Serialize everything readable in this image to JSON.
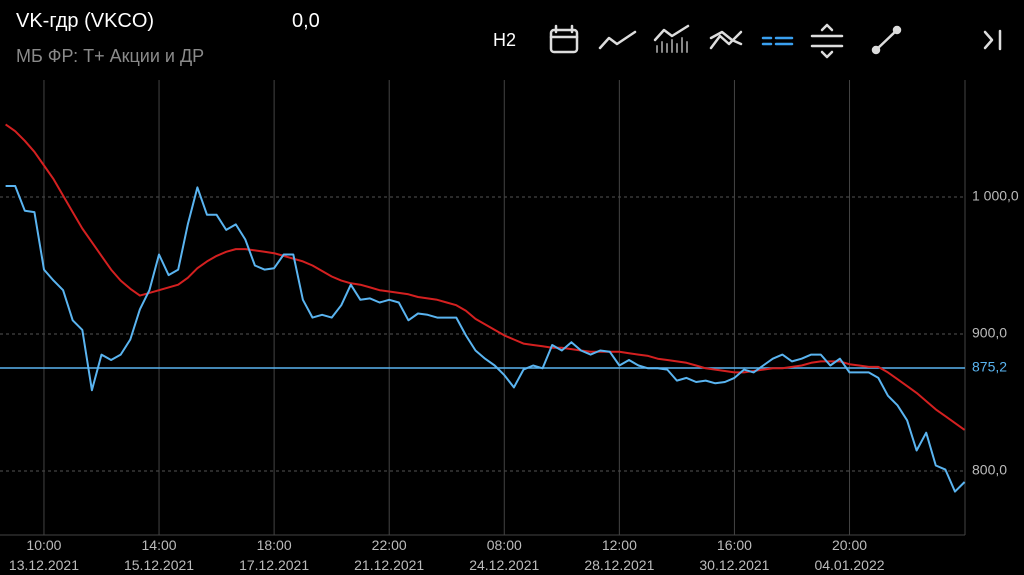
{
  "header": {
    "title": "VK-гдр (VKCO)",
    "value": "0,0",
    "subtitle": "МБ ФР: Т+ Акции и ДР",
    "timeframe": "H2"
  },
  "chart_data": {
    "type": "line",
    "categories": [
      null,
      null,
      null,
      null,
      "10:00\n13.12.2021",
      null,
      null,
      null,
      null,
      null,
      null,
      null,
      null,
      null,
      null,
      null,
      "14:00\n15.12.2021",
      null,
      null,
      null,
      null,
      null,
      null,
      null,
      null,
      null,
      null,
      null,
      "18:00\n17.12.2021",
      null,
      null,
      null,
      null,
      null,
      null,
      null,
      null,
      null,
      null,
      null,
      "22:00\n21.12.2021",
      null,
      null,
      null,
      null,
      null,
      null,
      null,
      null,
      null,
      null,
      null,
      "08:00\n24.12.2021",
      null,
      null,
      null,
      null,
      null,
      null,
      null,
      null,
      null,
      null,
      null,
      "12:00\n28.12.2021",
      null,
      null,
      null,
      null,
      null,
      null,
      null,
      null,
      null,
      null,
      null,
      "16:00\n30.12.2021",
      null,
      null,
      null,
      null,
      null,
      null,
      null,
      null,
      null,
      null,
      null,
      "20:00\n04.01.2022",
      null,
      null,
      null,
      null,
      null,
      null,
      null,
      null,
      null,
      null,
      null,
      null
    ],
    "series": [
      {
        "color": "#5ab4f0",
        "values": [
          1008,
          1008,
          990,
          989,
          947,
          939,
          932,
          910,
          903,
          859,
          885,
          881,
          885,
          896,
          918,
          932,
          958,
          943,
          947,
          980,
          1007,
          987,
          987,
          976,
          980,
          969,
          950,
          947,
          948,
          958,
          958,
          925,
          912,
          914,
          912,
          921,
          936,
          925,
          926,
          923,
          925,
          923,
          910,
          915,
          914,
          912,
          912,
          912,
          899,
          888,
          882,
          877,
          870,
          861,
          874,
          877,
          875,
          892,
          888,
          894,
          888,
          885,
          888,
          887,
          877,
          881,
          877,
          875,
          875,
          874,
          866,
          868,
          865,
          866,
          864,
          865,
          868,
          874,
          872,
          877,
          882,
          885,
          880,
          882,
          885,
          885,
          877,
          882,
          872,
          872,
          872,
          868,
          855,
          848,
          837,
          815,
          828,
          804,
          801,
          785,
          792
        ]
      },
      {
        "color": "#d42020",
        "values": [
          1053,
          1048,
          1041,
          1033,
          1023,
          1013,
          1001,
          989,
          977,
          967,
          957,
          947,
          939,
          933,
          928,
          930,
          932,
          934,
          936,
          941,
          948,
          953,
          957,
          960,
          962,
          962,
          961,
          960,
          959,
          957,
          955,
          953,
          950,
          946,
          942,
          939,
          937,
          936,
          934,
          932,
          931,
          930,
          929,
          927,
          926,
          925,
          923,
          921,
          917,
          911,
          907,
          903,
          899,
          896,
          893,
          892,
          891,
          890,
          890,
          889,
          888,
          887,
          887,
          887,
          887,
          886,
          885,
          884,
          882,
          881,
          880,
          879,
          877,
          875,
          874,
          873,
          872,
          872,
          873,
          874,
          875,
          875,
          876,
          877,
          879,
          880,
          880,
          880,
          878,
          877,
          876,
          876,
          872,
          867,
          862,
          857,
          851,
          845,
          840,
          835,
          830
        ]
      }
    ],
    "ylim": [
      753.3,
      1085.4
    ],
    "yticks": [
      {
        "value": 800,
        "label": "800,0"
      },
      {
        "value": 900,
        "label": "900,0"
      },
      {
        "value": 1000,
        "label": "1 000,0"
      }
    ],
    "grid": true,
    "price_line": {
      "value": 875.2,
      "label": "875,2",
      "color": "#5ab4f0"
    }
  }
}
